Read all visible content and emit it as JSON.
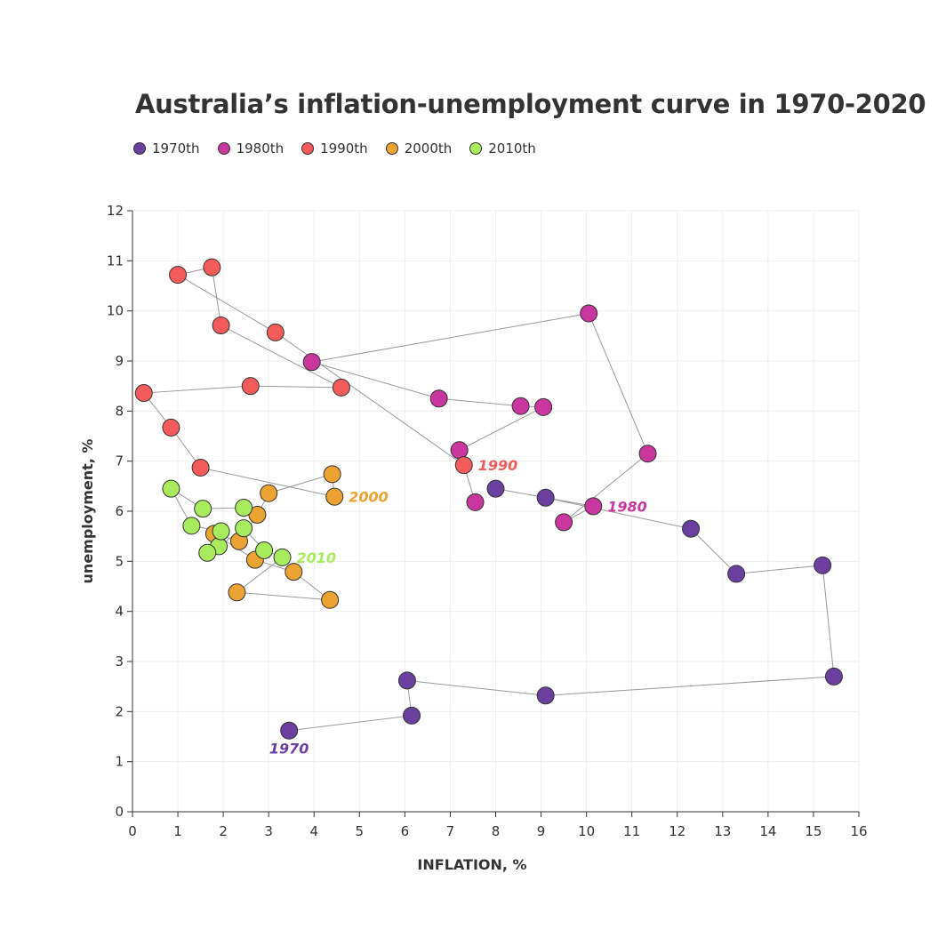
{
  "chart_data": {
    "type": "scatter",
    "title": "Australia’s inflation-unemployment curve in 1970-2020",
    "xlabel": "INFLATION, %",
    "ylabel": "unemployment, %",
    "xlim": [
      0,
      16
    ],
    "ylim": [
      0,
      12
    ],
    "x_ticks": [
      "0",
      "1",
      "2",
      "3",
      "4",
      "5",
      "6",
      "7",
      "8",
      "9",
      "10",
      "11",
      "12",
      "13",
      "14",
      "15",
      "16"
    ],
    "y_ticks": [
      "0",
      "1",
      "2",
      "3",
      "4",
      "5",
      "6",
      "7",
      "8",
      "9",
      "10",
      "11",
      "12"
    ],
    "grid": true,
    "legend_position": "top-left",
    "connected": true,
    "series": [
      {
        "name": "1970th",
        "color": "#6B3FA0",
        "label": "1970",
        "points": [
          [
            3.45,
            1.62
          ],
          [
            6.15,
            1.92
          ],
          [
            6.05,
            2.62
          ],
          [
            9.1,
            2.32
          ],
          [
            15.45,
            2.7
          ],
          [
            15.2,
            4.92
          ],
          [
            13.3,
            4.75
          ],
          [
            12.3,
            5.65
          ],
          [
            9.1,
            6.27
          ],
          [
            8.0,
            6.45
          ]
        ]
      },
      {
        "name": "1980th",
        "color": "#C9379E",
        "label": "1980",
        "points": [
          [
            10.15,
            6.1
          ],
          [
            9.5,
            5.78
          ],
          [
            11.35,
            7.15
          ],
          [
            10.05,
            9.95
          ],
          [
            3.95,
            8.98
          ],
          [
            6.75,
            8.25
          ],
          [
            8.55,
            8.1
          ],
          [
            9.05,
            8.08
          ],
          [
            7.2,
            7.22
          ],
          [
            7.55,
            6.18
          ]
        ]
      },
      {
        "name": "1990th",
        "color": "#F55B5B",
        "label": "1990",
        "points": [
          [
            7.3,
            6.92
          ],
          [
            3.15,
            9.57
          ],
          [
            1.0,
            10.72
          ],
          [
            1.75,
            10.87
          ],
          [
            1.95,
            9.71
          ],
          [
            4.6,
            8.47
          ],
          [
            2.6,
            8.5
          ],
          [
            0.25,
            8.36
          ],
          [
            0.85,
            7.67
          ],
          [
            1.5,
            6.87
          ]
        ]
      },
      {
        "name": "2000th",
        "color": "#ECA332",
        "label": "2000",
        "points": [
          [
            4.45,
            6.29
          ],
          [
            4.4,
            6.74
          ],
          [
            3.0,
            6.36
          ],
          [
            2.75,
            5.93
          ],
          [
            2.35,
            5.4
          ],
          [
            1.8,
            5.55
          ],
          [
            2.7,
            5.03
          ],
          [
            3.55,
            4.79
          ],
          [
            4.35,
            4.23
          ],
          [
            2.3,
            4.38
          ]
        ]
      },
      {
        "name": "2010th",
        "color": "#A8EB5C",
        "label": "2010",
        "points": [
          [
            3.3,
            5.08
          ],
          [
            2.9,
            5.22
          ],
          [
            2.45,
            5.66
          ],
          [
            1.9,
            5.3
          ],
          [
            1.65,
            5.17
          ],
          [
            1.95,
            5.6
          ],
          [
            1.3,
            5.71
          ],
          [
            0.85,
            6.45
          ],
          [
            1.55,
            6.05
          ],
          [
            2.45,
            6.07
          ]
        ]
      }
    ]
  }
}
